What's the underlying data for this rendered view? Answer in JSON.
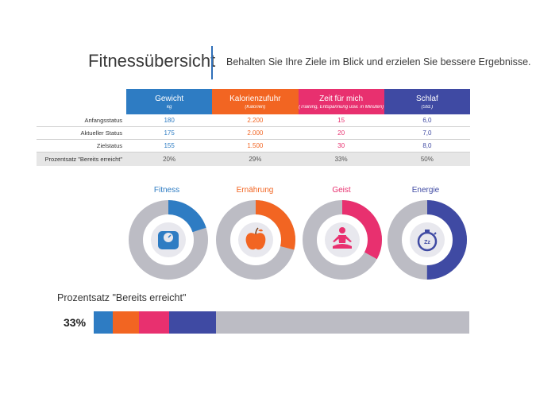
{
  "header": {
    "title": "Fitnessübersicht",
    "subtitle": "Behalten Sie Ihre Ziele im Blick und erzielen Sie bessere Ergebnisse."
  },
  "colors": {
    "blue": "#2e7cc3",
    "orange": "#f26522",
    "pink": "#e8306f",
    "indigo": "#3f4aa3",
    "track": "#bcbcc4",
    "accent": "#2f6fb8"
  },
  "table": {
    "columns": [
      {
        "title": "Gewicht",
        "unit": "kg"
      },
      {
        "title": "Kalorienzufuhr",
        "unit": "(Kalorien)"
      },
      {
        "title": "Zeit für mich",
        "unit": "(Training, Entspannung usw. in Minuten)"
      },
      {
        "title": "Schlaf",
        "unit": "(Std.)"
      }
    ],
    "rows": [
      {
        "label": "Anfangsstatus",
        "values": [
          "180",
          "2.200",
          "15",
          "6,0"
        ]
      },
      {
        "label": "Aktueller Status",
        "values": [
          "175",
          "2.000",
          "20",
          "7,0"
        ]
      },
      {
        "label": "Zielstatus",
        "values": [
          "155",
          "1.500",
          "30",
          "8,0"
        ]
      },
      {
        "label": "Prozentsatz \"Bereits erreicht\"",
        "values": [
          "20%",
          "29%",
          "33%",
          "50%"
        ]
      }
    ]
  },
  "donuts": [
    {
      "label": "Fitness",
      "icon": "scale-icon",
      "fraction": 0.2
    },
    {
      "label": "Ernährung",
      "icon": "apple-icon",
      "fraction": 0.29
    },
    {
      "label": "Geist",
      "icon": "meditation-icon",
      "fraction": 0.33
    },
    {
      "label": "Energie",
      "icon": "stopwatch-icon",
      "fraction": 0.5
    }
  ],
  "progress": {
    "title": "Prozentsatz \"Bereits erreicht\"",
    "overall": "33%",
    "segments": [
      0.05,
      0.07,
      0.08,
      0.125
    ]
  }
}
